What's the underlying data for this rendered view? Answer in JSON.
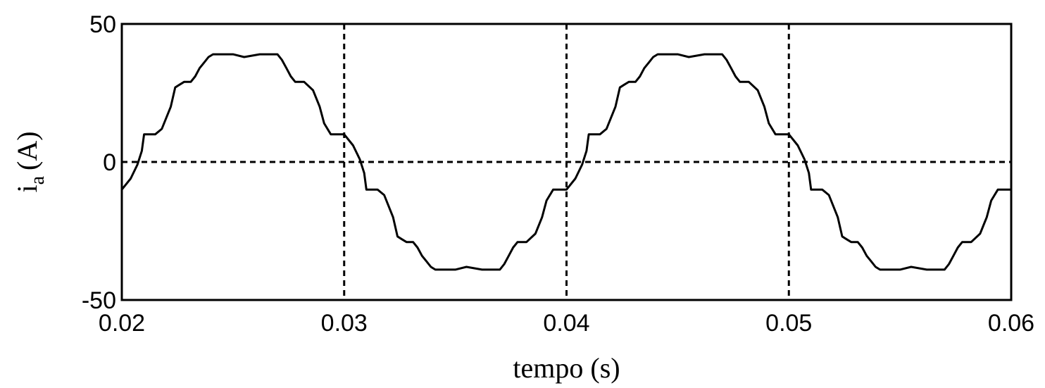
{
  "chart_data": {
    "type": "line",
    "title": "",
    "xlabel": "tempo (s)",
    "ylabel": "i",
    "ylabel_sub": "a",
    "ylabel_unit": "(A)",
    "xlim": [
      0.02,
      0.06
    ],
    "ylim": [
      -50,
      50
    ],
    "x_ticks": [
      0.02,
      0.03,
      0.04,
      0.05,
      0.06
    ],
    "x_tick_labels": [
      "0.02",
      "0.03",
      "0.04",
      "0.05",
      "0.06"
    ],
    "y_ticks": [
      50,
      0,
      -50
    ],
    "y_tick_labels": [
      "50",
      "0",
      "-50"
    ],
    "grid": "dashed, at x = 0.03, 0.04, 0.05 and y = 0",
    "line_color": "#000000",
    "series": [
      {
        "x": [
          0.02,
          0.0204,
          0.0207,
          0.0209,
          0.021,
          0.0212,
          0.0215,
          0.0218,
          0.0222,
          0.0224,
          0.0226,
          0.0228,
          0.0231,
          0.0233,
          0.0235,
          0.0237,
          0.0239,
          0.0241,
          0.0243,
          0.025,
          0.0255,
          0.0262,
          0.0267,
          0.027,
          0.0272,
          0.0274,
          0.0276,
          0.0278,
          0.028,
          0.0282,
          0.0286,
          0.0289,
          0.0291,
          0.0294,
          0.0297,
          0.03,
          0.0304,
          0.0307,
          0.0309,
          0.031,
          0.0312,
          0.0315,
          0.0318,
          0.0322,
          0.0324,
          0.0326,
          0.0328,
          0.0331,
          0.0333,
          0.0335,
          0.0337,
          0.0339,
          0.0341,
          0.0343,
          0.035,
          0.0355,
          0.0362,
          0.0367,
          0.037,
          0.0372,
          0.0374,
          0.0376,
          0.0378,
          0.038,
          0.0382,
          0.0386,
          0.0389,
          0.0391,
          0.0394,
          0.0397,
          0.04,
          0.0404,
          0.0407,
          0.0409,
          0.041,
          0.0412,
          0.0415,
          0.0418,
          0.0422,
          0.0424,
          0.0426,
          0.0428,
          0.0431,
          0.0433,
          0.0435,
          0.0437,
          0.0439,
          0.0441,
          0.0443,
          0.045,
          0.0455,
          0.0462,
          0.0467,
          0.047,
          0.0472,
          0.0474,
          0.0476,
          0.0478,
          0.048,
          0.0482,
          0.0486,
          0.0489,
          0.0491,
          0.0494,
          0.0497,
          0.05,
          0.0504,
          0.0507,
          0.0509,
          0.051,
          0.0512,
          0.0515,
          0.0518,
          0.0522,
          0.0524,
          0.0526,
          0.0528,
          0.0531,
          0.0533,
          0.0535,
          0.0537,
          0.0539,
          0.0541,
          0.0543,
          0.055,
          0.0555,
          0.0562,
          0.0567,
          0.057,
          0.0572,
          0.0574,
          0.0576,
          0.0578,
          0.058,
          0.0582,
          0.0586,
          0.0589,
          0.0591,
          0.0594,
          0.0597,
          0.06
        ],
        "y": [
          -10,
          -6,
          -1,
          4,
          10,
          10,
          10,
          12,
          20,
          27,
          28,
          29,
          29,
          31,
          34,
          36,
          38,
          39,
          39,
          39,
          38,
          39,
          39,
          39,
          37,
          34,
          31,
          29,
          29,
          29,
          26,
          20,
          14,
          10,
          10,
          10,
          6,
          1,
          -4,
          -10,
          -10,
          -10,
          -12,
          -20,
          -27,
          -28,
          -29,
          -29,
          -31,
          -34,
          -36,
          -38,
          -39,
          -39,
          -39,
          -38,
          -39,
          -39,
          -39,
          -37,
          -34,
          -31,
          -29,
          -29,
          -29,
          -26,
          -20,
          -14,
          -10,
          -10,
          -10,
          -6,
          -1,
          4,
          10,
          10,
          10,
          12,
          20,
          27,
          28,
          29,
          29,
          31,
          34,
          36,
          38,
          39,
          39,
          39,
          38,
          39,
          39,
          39,
          37,
          34,
          31,
          29,
          29,
          29,
          26,
          20,
          14,
          10,
          10,
          10,
          6,
          1,
          -4,
          -10,
          -10,
          -10,
          -12,
          -20,
          -27,
          -28,
          -29,
          -29,
          -31,
          -34,
          -36,
          -38,
          -39,
          -39,
          -39,
          -38,
          -39,
          -39,
          -39,
          -37,
          -34,
          -31,
          -29,
          -29,
          -29,
          -26,
          -20,
          -14,
          -10,
          -10,
          -10
        ]
      }
    ]
  }
}
